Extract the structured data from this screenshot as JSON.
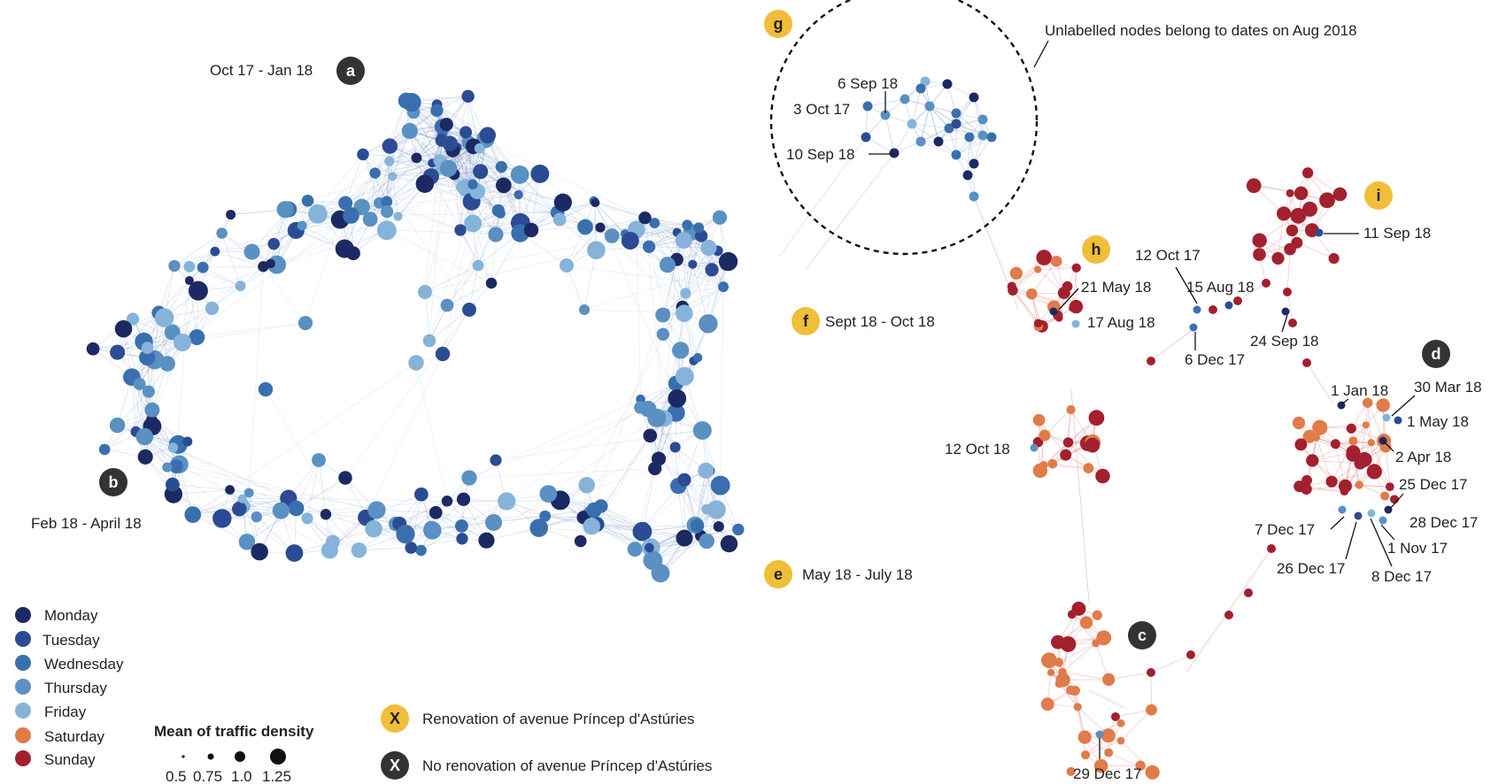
{
  "colors": {
    "Monday": "#1b2a63",
    "Tuesday": "#2b4c94",
    "Wednesday": "#3a6faf",
    "Thursday": "#5a90c2",
    "Friday": "#86b3d9",
    "Saturday": "#e07b4a",
    "Sunday": "#a3202e",
    "renovation_badge": "#f0be38",
    "no_renovation_badge": "#333333",
    "edge_blue": "#7f99c6",
    "edge_red": "#e6a0a0"
  },
  "annotation_note": "Unlabelled nodes belong to dates on Aug 2018",
  "periods": [
    {
      "badge": "a",
      "text": "Oct 17 - Jan 18",
      "kind": "no_renovation"
    },
    {
      "badge": "b",
      "text": "Feb 18 - April 18",
      "kind": "no_renovation"
    },
    {
      "badge": "c",
      "text": "",
      "kind": "no_renovation"
    },
    {
      "badge": "d",
      "text": "",
      "kind": "no_renovation"
    },
    {
      "badge": "e",
      "text": "May 18 - July 18",
      "kind": "renovation"
    },
    {
      "badge": "f",
      "text": "Sept 18 - Oct 18",
      "kind": "renovation"
    },
    {
      "badge": "g",
      "text": "",
      "kind": "renovation"
    },
    {
      "badge": "h",
      "text": "",
      "kind": "renovation"
    },
    {
      "badge": "i",
      "text": "",
      "kind": "renovation"
    }
  ],
  "date_labels": {
    "g": [
      "6 Sep 18",
      "3 Oct 17",
      "10 Sep 18"
    ],
    "h": [
      "21 May 18",
      "17 Aug 18",
      "12 Oct 18"
    ],
    "mid": [
      "12 Oct 17",
      "15 Aug 18",
      "6 Dec 17",
      "24 Sep 18"
    ],
    "i": [
      "11 Sep 18"
    ],
    "d": [
      "1 Jan 18",
      "30 Mar 18",
      "1 May 18",
      "2 Apr 18",
      "25 Dec 17",
      "28 Dec 17",
      "7 Dec 17",
      "26 Dec 17",
      "1 Nov 17",
      "8 Dec 17"
    ],
    "c": [
      "29 Dec 17"
    ]
  },
  "legend": {
    "days": [
      "Monday",
      "Tuesday",
      "Wednesday",
      "Thursday",
      "Friday",
      "Saturday",
      "Sunday"
    ],
    "size_title": "Mean of traffic density",
    "size_values": [
      "0.5",
      "0.75",
      "1.0",
      "1.25"
    ],
    "badge_letter": "X",
    "renovation_text": "Renovation of avenue Príncep d'Astúries",
    "no_renovation_text": "No renovation of  avenue Príncep d'Astúries"
  }
}
